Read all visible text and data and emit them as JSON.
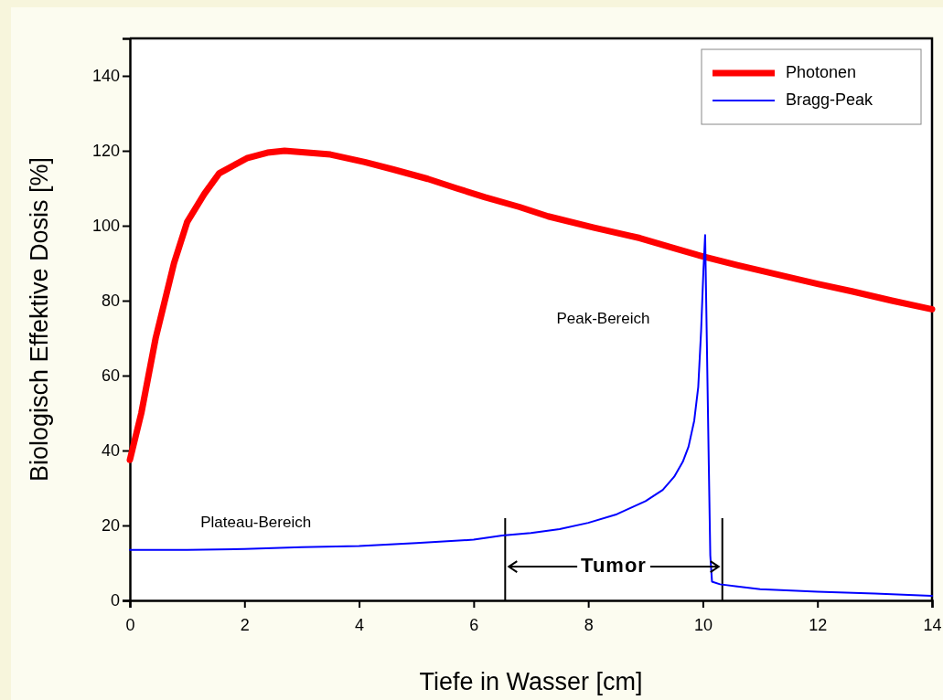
{
  "chart_data": {
    "type": "line",
    "xlabel": "Tiefe in Wasser [cm]",
    "ylabel": "Biologisch Effektive Dosis [%]",
    "xlim": [
      0,
      14
    ],
    "xticks": [
      0,
      2,
      4,
      6,
      8,
      10,
      12,
      14
    ],
    "ylim": [
      0,
      150
    ],
    "yticks": [
      0,
      20,
      40,
      60,
      80,
      100,
      120,
      140
    ],
    "legend": "top right",
    "grid": false,
    "line_style": "solid",
    "marker": "none",
    "series": [
      {
        "name": "Photonen",
        "color": "#ff0000",
        "x": [
          0,
          0.2,
          0.45,
          0.77,
          1.0,
          1.3,
          1.56,
          2.04,
          2.4,
          2.7,
          3.1,
          3.5,
          4.1,
          4.6,
          5.2,
          5.7,
          6.2,
          6.8,
          7.3,
          8.1,
          8.9,
          9.5,
          10.0,
          10.6,
          11.3,
          12.0,
          12.6,
          13.3,
          14
        ],
        "values": [
          37.5,
          50,
          70,
          90,
          101,
          108.5,
          114,
          118,
          119.5,
          120,
          119.5,
          119,
          117,
          115,
          112.5,
          110,
          107.6,
          105,
          102.5,
          99.5,
          96.7,
          94,
          91.8,
          89.5,
          87,
          84.5,
          82.5,
          80,
          77.7
        ]
      },
      {
        "name": "Bragg-Peak",
        "color": "#0000ff",
        "x": [
          0,
          1,
          2,
          3,
          4,
          5,
          6,
          6.5,
          7,
          7.5,
          8,
          8.5,
          9,
          9.3,
          9.5,
          9.65,
          9.75,
          9.85,
          9.92,
          9.97,
          10.01,
          10.04,
          10.07,
          10.1,
          10.13,
          10.16,
          10.3,
          10.6,
          11,
          12,
          13,
          14
        ],
        "values": [
          13.5,
          13.5,
          13.7,
          14.2,
          14.5,
          15.3,
          16.2,
          17.3,
          18,
          19,
          20.7,
          23,
          26.5,
          29.5,
          33,
          37,
          41,
          48,
          57,
          72,
          88,
          97.5,
          69,
          40,
          12,
          5,
          4.3,
          3.7,
          3,
          2.3,
          1.8,
          1.2
        ]
      }
    ],
    "ref_lines": [
      {
        "axis": "x",
        "value": 6.55,
        "color": "#000000"
      },
      {
        "axis": "x",
        "value": 10.34,
        "color": "#000000"
      }
    ],
    "annotations": [
      "Plateau-Bereich",
      "Peak-Bereich",
      {
        "text": "Tumor",
        "x": 10.34,
        "y": 9
      }
    ]
  }
}
